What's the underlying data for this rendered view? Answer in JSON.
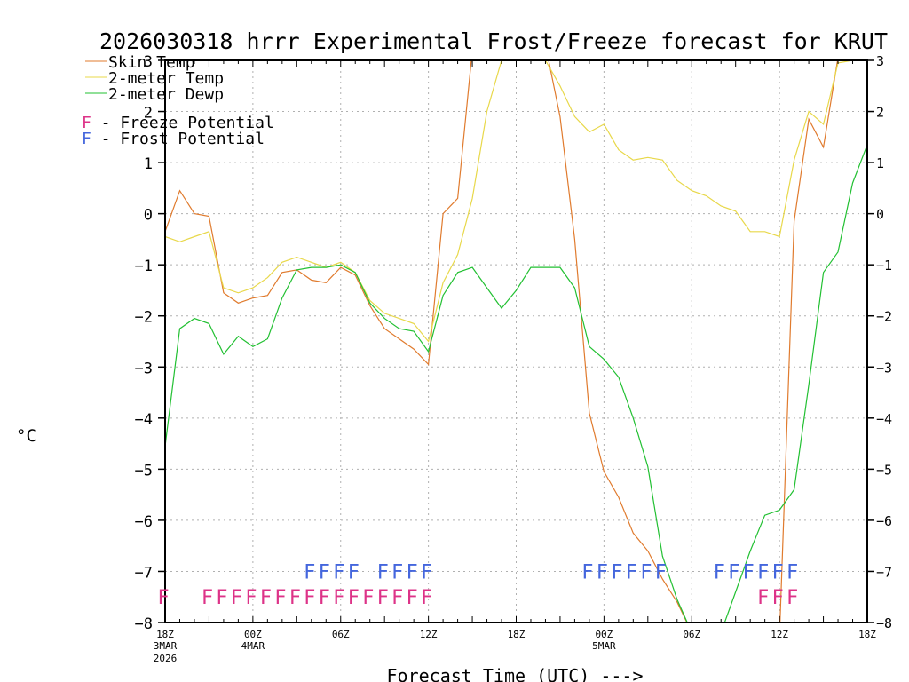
{
  "chart_data": {
    "type": "line",
    "title": "2026030318 hrrr Experimental Frost/Freeze forecast for KRUT",
    "xlabel": "Forecast Time (UTC) --->",
    "ylabel": "°C",
    "ylim": [
      -8,
      3
    ],
    "yticks": [
      -8,
      -7,
      -6,
      -5,
      -4,
      -3,
      -2,
      -1,
      0,
      1,
      2,
      3
    ],
    "xlim": [
      0,
      48
    ],
    "xticks": [
      {
        "hour": 0,
        "label": "18Z",
        "sub1": "3MAR",
        "sub2": "2026"
      },
      {
        "hour": 6,
        "label": "00Z",
        "sub1": "4MAR",
        "sub2": ""
      },
      {
        "hour": 12,
        "label": "06Z",
        "sub1": "",
        "sub2": ""
      },
      {
        "hour": 18,
        "label": "12Z",
        "sub1": "",
        "sub2": ""
      },
      {
        "hour": 24,
        "label": "18Z",
        "sub1": "",
        "sub2": ""
      },
      {
        "hour": 30,
        "label": "00Z",
        "sub1": "5MAR",
        "sub2": ""
      },
      {
        "hour": 36,
        "label": "06Z",
        "sub1": "",
        "sub2": ""
      },
      {
        "hour": 42,
        "label": "12Z",
        "sub1": "",
        "sub2": ""
      },
      {
        "hour": 48,
        "label": "18Z",
        "sub1": "",
        "sub2": ""
      }
    ],
    "series": [
      {
        "name": "Skin Temp",
        "color": "#e07b2e",
        "points": [
          [
            0,
            -0.35
          ],
          [
            1,
            0.45
          ],
          [
            2,
            0.0
          ],
          [
            3,
            -0.05
          ],
          [
            4,
            -1.55
          ],
          [
            5,
            -1.75
          ],
          [
            6,
            -1.65
          ],
          [
            7,
            -1.6
          ],
          [
            8,
            -1.15
          ],
          [
            9,
            -1.1
          ],
          [
            10,
            -1.3
          ],
          [
            11,
            -1.35
          ],
          [
            12,
            -1.05
          ],
          [
            13,
            -1.2
          ],
          [
            14,
            -1.8
          ],
          [
            15,
            -2.25
          ],
          [
            16,
            -2.45
          ],
          [
            17,
            -2.65
          ],
          [
            18,
            -2.95
          ],
          [
            19,
            0.0
          ],
          [
            20,
            0.3
          ],
          [
            21,
            3.2
          ],
          [
            22,
            3.3
          ],
          [
            23,
            3.3
          ],
          [
            24,
            3.3
          ],
          [
            25,
            3.3
          ],
          [
            26,
            3.3
          ],
          [
            27,
            1.9
          ],
          [
            28,
            -0.5
          ],
          [
            29,
            -3.9
          ],
          [
            30,
            -5.05
          ],
          [
            31,
            -5.55
          ],
          [
            32,
            -6.25
          ],
          [
            33,
            -6.6
          ],
          [
            34,
            -7.15
          ],
          [
            35,
            -7.6
          ],
          [
            36,
            -8.2
          ],
          [
            37,
            -8.3
          ],
          [
            38,
            -8.3
          ],
          [
            39,
            -8.3
          ],
          [
            40,
            -8.3
          ],
          [
            41,
            -8.3
          ],
          [
            42,
            -8.3
          ],
          [
            43,
            -0.15
          ],
          [
            44,
            1.85
          ],
          [
            45,
            1.3
          ],
          [
            46,
            3.05
          ],
          [
            47,
            3.1
          ]
        ]
      },
      {
        "name": "2-meter Temp",
        "color": "#e8d84a",
        "points": [
          [
            0,
            -0.45
          ],
          [
            1,
            -0.55
          ],
          [
            2,
            -0.45
          ],
          [
            3,
            -0.35
          ],
          [
            4,
            -1.45
          ],
          [
            5,
            -1.55
          ],
          [
            6,
            -1.45
          ],
          [
            7,
            -1.25
          ],
          [
            8,
            -0.95
          ],
          [
            9,
            -0.85
          ],
          [
            10,
            -0.95
          ],
          [
            11,
            -1.05
          ],
          [
            12,
            -0.95
          ],
          [
            13,
            -1.15
          ],
          [
            14,
            -1.7
          ],
          [
            15,
            -1.95
          ],
          [
            16,
            -2.05
          ],
          [
            17,
            -2.15
          ],
          [
            18,
            -2.5
          ],
          [
            19,
            -1.35
          ],
          [
            20,
            -0.8
          ],
          [
            21,
            0.3
          ],
          [
            22,
            2.0
          ],
          [
            23,
            3.0
          ],
          [
            24,
            3.3
          ],
          [
            25,
            3.3
          ],
          [
            26,
            3.0
          ],
          [
            27,
            2.5
          ],
          [
            28,
            1.9
          ],
          [
            29,
            1.6
          ],
          [
            30,
            1.75
          ],
          [
            31,
            1.25
          ],
          [
            32,
            1.05
          ],
          [
            33,
            1.1
          ],
          [
            34,
            1.05
          ],
          [
            35,
            0.65
          ],
          [
            36,
            0.45
          ],
          [
            37,
            0.35
          ],
          [
            38,
            0.15
          ],
          [
            39,
            0.05
          ],
          [
            40,
            -0.35
          ],
          [
            41,
            -0.35
          ],
          [
            42,
            -0.45
          ],
          [
            43,
            1.05
          ],
          [
            44,
            2.0
          ],
          [
            45,
            1.75
          ],
          [
            46,
            2.95
          ],
          [
            47,
            3.0
          ]
        ]
      },
      {
        "name": "2-meter Dewp",
        "color": "#22c032",
        "points": [
          [
            0,
            -4.55
          ],
          [
            1,
            -2.25
          ],
          [
            2,
            -2.05
          ],
          [
            3,
            -2.15
          ],
          [
            4,
            -2.75
          ],
          [
            5,
            -2.4
          ],
          [
            6,
            -2.6
          ],
          [
            7,
            -2.45
          ],
          [
            8,
            -1.65
          ],
          [
            9,
            -1.1
          ],
          [
            10,
            -1.05
          ],
          [
            11,
            -1.05
          ],
          [
            12,
            -1.0
          ],
          [
            13,
            -1.15
          ],
          [
            14,
            -1.75
          ],
          [
            15,
            -2.05
          ],
          [
            16,
            -2.25
          ],
          [
            17,
            -2.3
          ],
          [
            18,
            -2.7
          ],
          [
            19,
            -1.6
          ],
          [
            20,
            -1.15
          ],
          [
            21,
            -1.05
          ],
          [
            22,
            -1.45
          ],
          [
            23,
            -1.85
          ],
          [
            24,
            -1.5
          ],
          [
            25,
            -1.05
          ],
          [
            26,
            -1.05
          ],
          [
            27,
            -1.05
          ],
          [
            28,
            -1.45
          ],
          [
            29,
            -2.6
          ],
          [
            30,
            -2.85
          ],
          [
            31,
            -3.2
          ],
          [
            32,
            -4.0
          ],
          [
            33,
            -4.95
          ],
          [
            34,
            -6.7
          ],
          [
            35,
            -7.55
          ],
          [
            36,
            -8.2
          ],
          [
            37,
            -8.2
          ],
          [
            38,
            -8.2
          ],
          [
            39,
            -7.4
          ],
          [
            40,
            -6.6
          ],
          [
            41,
            -5.9
          ],
          [
            42,
            -5.8
          ],
          [
            43,
            -5.4
          ],
          [
            44,
            -3.35
          ],
          [
            45,
            -1.15
          ],
          [
            46,
            -0.75
          ],
          [
            47,
            0.6
          ],
          [
            48,
            1.35
          ]
        ]
      }
    ],
    "frost_potential": {
      "label": "Frost Potential",
      "color": "#4466dd",
      "hours": [
        10,
        11,
        12,
        13,
        15,
        16,
        17,
        18,
        29,
        30,
        31,
        32,
        33,
        34,
        38,
        39,
        40,
        41,
        42,
        43
      ]
    },
    "freeze_potential": {
      "label": "Freeze Potential",
      "color": "#dd3388",
      "hours": [
        0,
        3,
        4,
        5,
        6,
        7,
        8,
        9,
        10,
        11,
        12,
        13,
        14,
        15,
        16,
        17,
        18,
        41,
        42,
        43
      ]
    },
    "marker_char": "F",
    "legend_dash": " - "
  }
}
